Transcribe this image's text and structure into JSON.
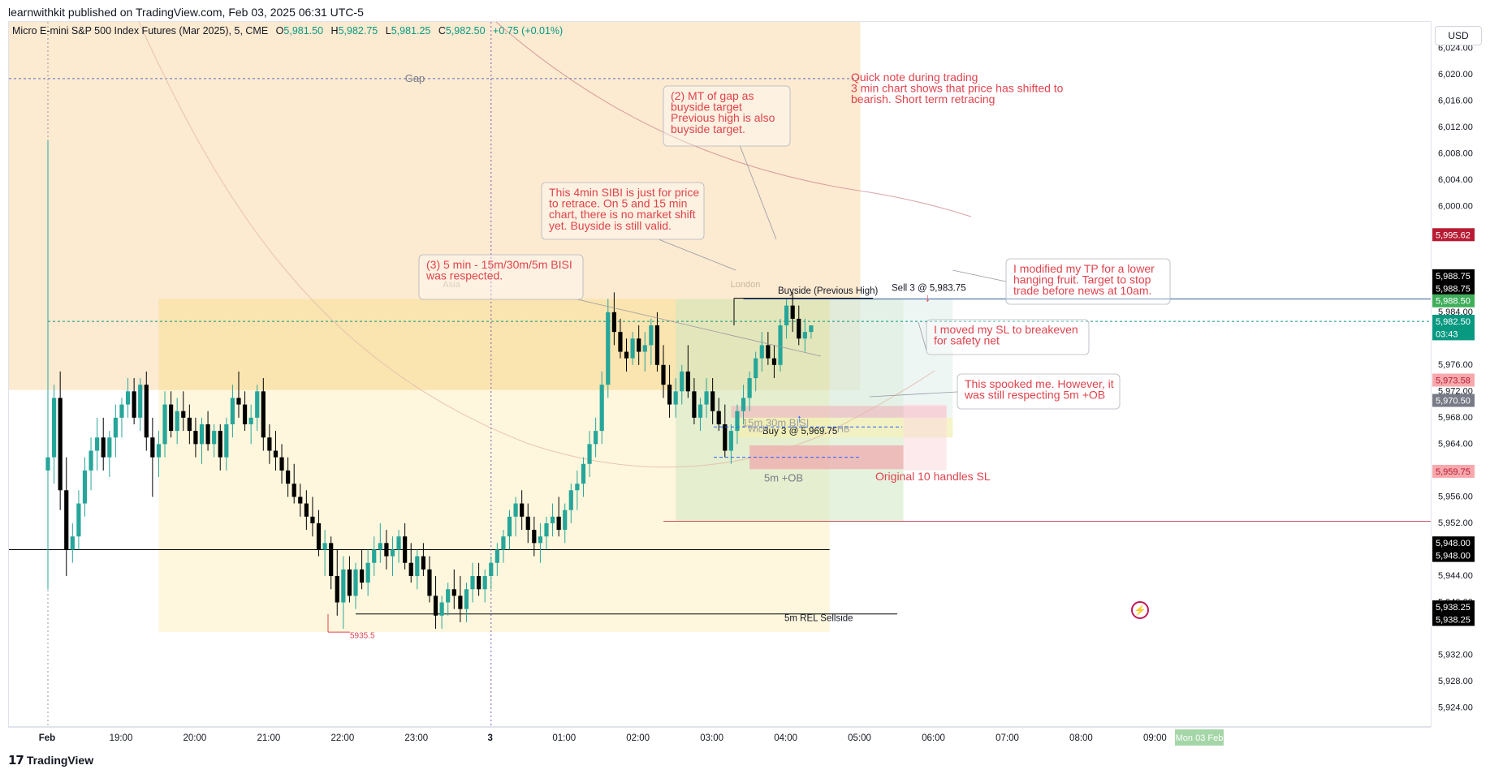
{
  "header": {
    "published": "learnwithkit published on TradingView.com, Feb 03, 2025 06:31 UTC-5",
    "symbol": "Micro E-mini S&P 500 Index Futures (Mar 2025), 5, CME",
    "open_label": "O",
    "open": "5,981.50",
    "high_label": "H",
    "high": "5,982.75",
    "low_label": "L",
    "low": "5,981.25",
    "close_label": "C",
    "close": "5,982.50",
    "change": "+0.75 (+0.01%)"
  },
  "currency": "USD",
  "footer": {
    "brand": "TradingView"
  },
  "colors": {
    "up": "#26a69a",
    "down": "#000000",
    "accent_red": "#e0434d",
    "session_asia": "#fdf1dc",
    "session_london": "#fbe3c1"
  },
  "chart_data": {
    "type": "candlestick",
    "ylim": [
      5921,
      6028
    ],
    "y_ticks": [
      6024,
      6020,
      6016,
      6012,
      6008,
      6004,
      6000,
      5996,
      5992,
      5988,
      5984,
      5980,
      5976,
      5972,
      5968,
      5964,
      5960,
      5956,
      5952,
      5948,
      5944,
      5940,
      5936,
      5932,
      5928,
      5924
    ],
    "y_tick_labels": [
      "6,024.00",
      "6,020.00",
      "6,016.00",
      "6,012.00",
      "6,008.00",
      "6,004.00",
      "6,000.00",
      "",
      "",
      "",
      "5,984.00",
      "",
      "5,976.00",
      "5,972.00",
      "5,968.00",
      "5,964.00",
      "",
      "5,956.00",
      "5,952.00",
      "",
      "5,944.00",
      "5,940.00",
      "",
      "5,932.00",
      "5,928.00",
      "5,924.00"
    ],
    "x_ticks": [
      {
        "label": "Feb",
        "bar": 0,
        "bold": true
      },
      {
        "label": "19:00",
        "bar": 12
      },
      {
        "label": "20:00",
        "bar": 24
      },
      {
        "label": "21:00",
        "bar": 36
      },
      {
        "label": "22:00",
        "bar": 48
      },
      {
        "label": "23:00",
        "bar": 60
      },
      {
        "label": "3",
        "bar": 72,
        "bold": true
      },
      {
        "label": "01:00",
        "bar": 84
      },
      {
        "label": "02:00",
        "bar": 96
      },
      {
        "label": "03:00",
        "bar": 108
      },
      {
        "label": "04:00",
        "bar": 120
      },
      {
        "label": "05:00",
        "bar": 132
      },
      {
        "label": "06:00",
        "bar": 144
      },
      {
        "label": "07:00",
        "bar": 156
      },
      {
        "label": "08:00",
        "bar": 168
      },
      {
        "label": "09:00",
        "bar": 180
      }
    ],
    "x_badge": "Mon 03 Feb",
    "price_labels": [
      {
        "value": "5,995.62",
        "price": 5995.62,
        "bg": "#b71c34",
        "fg": "#ffffff"
      },
      {
        "value": "5,988.75",
        "price": 5989.4,
        "bg": "#000000",
        "fg": "#ffffff"
      },
      {
        "value": "5,988.75",
        "price": 5987.5,
        "bg": "#000000",
        "fg": "#ffffff"
      },
      {
        "value": "5,988.50",
        "price": 5985.6,
        "bg": "#3fae5a",
        "fg": "#ffffff"
      },
      {
        "value": "5,982.50",
        "price": 5982.5,
        "bg": "#089981",
        "fg": "#ffffff"
      },
      {
        "value": "03:43",
        "price": 5980.6,
        "bg": "#089981",
        "fg": "#ffffff"
      },
      {
        "value": "5,973.58",
        "price": 5973.58,
        "bg": "#f7a8ac",
        "fg": "#b71c34"
      },
      {
        "value": "5,970.50",
        "price": 5970.5,
        "bg": "#787b86",
        "fg": "#ffffff"
      },
      {
        "value": "5,959.75",
        "price": 5959.75,
        "bg": "#f7a8ac",
        "fg": "#b71c34"
      },
      {
        "value": "5,948.00",
        "price": 5948.9,
        "bg": "#000000",
        "fg": "#ffffff"
      },
      {
        "value": "5,948.00",
        "price": 5947.0,
        "bg": "#000000",
        "fg": "#ffffff"
      },
      {
        "value": "5,938.25",
        "price": 5939.2,
        "bg": "#000000",
        "fg": "#ffffff"
      },
      {
        "value": "5,938.25",
        "price": 5937.3,
        "bg": "#000000",
        "fg": "#ffffff"
      }
    ],
    "candles": [
      [
        5960,
        6010,
        5942,
        5962
      ],
      [
        5962,
        5973,
        5958,
        5971
      ],
      [
        5971,
        5975,
        5954,
        5957
      ],
      [
        5957,
        5962,
        5944,
        5948
      ],
      [
        5948,
        5952,
        5946,
        5950
      ],
      [
        5950,
        5957,
        5948,
        5955
      ],
      [
        5955,
        5962,
        5953,
        5960
      ],
      [
        5960,
        5965,
        5957,
        5963
      ],
      [
        5963,
        5968,
        5960,
        5965
      ],
      [
        5965,
        5968,
        5960,
        5962
      ],
      [
        5962,
        5966,
        5959,
        5965
      ],
      [
        5965,
        5970,
        5962,
        5968
      ],
      [
        5968,
        5971,
        5965,
        5970
      ],
      [
        5970,
        5974,
        5968,
        5972
      ],
      [
        5972,
        5974,
        5967,
        5968
      ],
      [
        5968,
        5974,
        5966,
        5973
      ],
      [
        5973,
        5975,
        5963,
        5965
      ],
      [
        5965,
        5968,
        5956,
        5962
      ],
      [
        5962,
        5966,
        5959,
        5964
      ],
      [
        5964,
        5972,
        5962,
        5970
      ],
      [
        5970,
        5972,
        5965,
        5966
      ],
      [
        5966,
        5971,
        5964,
        5969
      ],
      [
        5969,
        5972,
        5966,
        5968
      ],
      [
        5968,
        5970,
        5964,
        5966
      ],
      [
        5966,
        5968,
        5962,
        5964
      ],
      [
        5964,
        5968,
        5961,
        5967
      ],
      [
        5967,
        5969,
        5963,
        5964
      ],
      [
        5964,
        5967,
        5962,
        5966
      ],
      [
        5966,
        5967,
        5960,
        5962
      ],
      [
        5962,
        5968,
        5960,
        5967
      ],
      [
        5967,
        5973,
        5965,
        5971
      ],
      [
        5971,
        5975,
        5968,
        5970
      ],
      [
        5970,
        5972,
        5966,
        5967
      ],
      [
        5967,
        5970,
        5964,
        5968
      ],
      [
        5968,
        5973,
        5966,
        5972
      ],
      [
        5972,
        5974,
        5963,
        5965
      ],
      [
        5965,
        5967,
        5961,
        5963
      ],
      [
        5963,
        5966,
        5960,
        5962
      ],
      [
        5962,
        5964,
        5958,
        5960
      ],
      [
        5960,
        5962,
        5956,
        5958
      ],
      [
        5958,
        5961,
        5955,
        5956
      ],
      [
        5956,
        5958,
        5953,
        5955
      ],
      [
        5955,
        5957,
        5951,
        5953
      ],
      [
        5953,
        5956,
        5950,
        5952
      ],
      [
        5952,
        5954,
        5947,
        5948
      ],
      [
        5948,
        5951,
        5944,
        5949
      ],
      [
        5949,
        5950,
        5942,
        5944
      ],
      [
        5944,
        5948,
        5938,
        5940
      ],
      [
        5940,
        5947,
        5936,
        5945
      ],
      [
        5945,
        5947,
        5940,
        5941
      ],
      [
        5941,
        5946,
        5939,
        5945
      ],
      [
        5945,
        5948,
        5942,
        5943
      ],
      [
        5943,
        5948,
        5941,
        5946
      ],
      [
        5946,
        5950,
        5944,
        5948
      ],
      [
        5948,
        5952,
        5946,
        5949
      ],
      [
        5949,
        5951,
        5945,
        5947
      ],
      [
        5947,
        5950,
        5944,
        5948
      ],
      [
        5948,
        5951,
        5946,
        5950
      ],
      [
        5950,
        5952,
        5945,
        5946
      ],
      [
        5946,
        5949,
        5943,
        5944
      ],
      [
        5944,
        5948,
        5942,
        5947
      ],
      [
        5947,
        5949,
        5944,
        5945
      ],
      [
        5945,
        5947,
        5940,
        5941
      ],
      [
        5941,
        5944,
        5936,
        5938
      ],
      [
        5938,
        5941,
        5936,
        5940
      ],
      [
        5940,
        5943,
        5938,
        5942
      ],
      [
        5942,
        5945,
        5939,
        5941
      ],
      [
        5941,
        5944,
        5937,
        5939
      ],
      [
        5939,
        5943,
        5937,
        5942
      ],
      [
        5942,
        5946,
        5940,
        5944
      ],
      [
        5944,
        5946,
        5941,
        5942
      ],
      [
        5942,
        5945,
        5940,
        5944
      ],
      [
        5944,
        5947,
        5942,
        5946
      ],
      [
        5946,
        5949,
        5944,
        5948
      ],
      [
        5948,
        5951,
        5946,
        5950
      ],
      [
        5950,
        5954,
        5948,
        5953
      ],
      [
        5953,
        5956,
        5950,
        5955
      ],
      [
        5955,
        5957,
        5951,
        5953
      ],
      [
        5953,
        5955,
        5949,
        5951
      ],
      [
        5951,
        5953,
        5947,
        5949
      ],
      [
        5949,
        5952,
        5946,
        5950
      ],
      [
        5950,
        5953,
        5948,
        5952
      ],
      [
        5952,
        5955,
        5950,
        5953
      ],
      [
        5953,
        5956,
        5950,
        5951
      ],
      [
        5951,
        5955,
        5949,
        5954
      ],
      [
        5954,
        5958,
        5952,
        5957
      ],
      [
        5957,
        5960,
        5954,
        5958
      ],
      [
        5958,
        5962,
        5956,
        5961
      ],
      [
        5961,
        5966,
        5959,
        5964
      ],
      [
        5964,
        5968,
        5962,
        5966
      ],
      [
        5966,
        5975,
        5964,
        5973
      ],
      [
        5973,
        5986,
        5971,
        5984
      ],
      [
        5984,
        5987,
        5979,
        5981
      ],
      [
        5981,
        5983,
        5977,
        5978
      ],
      [
        5978,
        5980,
        5975,
        5977
      ],
      [
        5977,
        5981,
        5976,
        5980
      ],
      [
        5980,
        5982,
        5976,
        5978
      ],
      [
        5978,
        5981,
        5975,
        5979
      ],
      [
        5979,
        5983,
        5976,
        5982
      ],
      [
        5982,
        5984,
        5975,
        5976
      ],
      [
        5976,
        5979,
        5971,
        5973
      ],
      [
        5973,
        5976,
        5968,
        5970
      ],
      [
        5970,
        5974,
        5968,
        5972
      ],
      [
        5972,
        5976,
        5970,
        5975
      ],
      [
        5975,
        5979,
        5971,
        5972
      ],
      [
        5972,
        5974,
        5967,
        5968
      ],
      [
        5968,
        5971,
        5966,
        5970
      ],
      [
        5970,
        5974,
        5968,
        5972
      ],
      [
        5972,
        5974,
        5967,
        5969
      ],
      [
        5969,
        5971,
        5966,
        5967
      ],
      [
        5967,
        5970,
        5962,
        5963
      ],
      [
        5963,
        5967,
        5961,
        5966
      ],
      [
        5966,
        5970,
        5964,
        5969
      ],
      [
        5969,
        5973,
        5967,
        5971
      ],
      [
        5971,
        5975,
        5969,
        5974
      ],
      [
        5974,
        5978,
        5972,
        5977
      ],
      [
        5977,
        5981,
        5975,
        5979
      ],
      [
        5979,
        5981,
        5976,
        5977
      ],
      [
        5977,
        5979,
        5974,
        5976
      ],
      [
        5976,
        5983,
        5975,
        5982
      ],
      [
        5982,
        5986,
        5980,
        5985
      ],
      [
        5985,
        5987,
        5981,
        5983
      ],
      [
        5983,
        5985,
        5979,
        5980
      ],
      [
        5980,
        5983,
        5978,
        5981
      ],
      [
        5981,
        5982,
        5980,
        5982
      ]
    ],
    "price_lines": [
      {
        "price": 5986.0,
        "x1bar": 113,
        "x2bar": 999,
        "color": "#2f5ea0",
        "width": 1,
        "dash": false
      },
      {
        "price": 5982.6,
        "x1bar": 0,
        "x2bar": 999,
        "color": "#089981",
        "width": 1,
        "dash": true
      },
      {
        "price": 5952.3,
        "x1bar": 100,
        "x2bar": 999,
        "color": "#b71c34",
        "width": 0.8,
        "dash": false
      },
      {
        "price": 5948.0,
        "x1bar": -1,
        "x2bar": 127,
        "color": "#000000",
        "width": 1,
        "dash": false
      },
      {
        "price": 5938.25,
        "x1bar": 50,
        "x2bar": 138,
        "color": "#000000",
        "width": 1,
        "dash": false
      },
      {
        "price": 6019.4,
        "x1bar": -1,
        "x2bar": 132,
        "color": "#5b72c4",
        "width": 1,
        "dash": true
      }
    ],
    "zones": [
      {
        "x1bar": -1,
        "x2bar": 132,
        "p1": 6028,
        "p2": 5972.2,
        "fill": "#fbe3c1",
        "opacity": 0.75
      },
      {
        "x1bar": 18,
        "x2bar": 127,
        "p1": 5986.0,
        "p2": 5935.5,
        "fill": "#fdf3cf",
        "opacity": 0.7
      },
      {
        "x1bar": 18,
        "x2bar": 132,
        "p1": 5986.0,
        "p2": 5972.2,
        "fill": "#f6d48a",
        "opacity": 0.45
      },
      {
        "x1bar": 102,
        "x2bar": 139,
        "p1": 5986.0,
        "p2": 5952.3,
        "fill": "#cfe8c3",
        "opacity": 0.55
      },
      {
        "x1bar": 127,
        "x2bar": 147,
        "p1": 5986.0,
        "p2": 5965,
        "fill": "#e3f0ec",
        "opacity": 0.6
      },
      {
        "x1bar": 111,
        "x2bar": 146,
        "p1": 5969.8,
        "p2": 5968.0,
        "fill": "#f2b3bb",
        "opacity": 0.6
      },
      {
        "x1bar": 112,
        "x2bar": 147,
        "p1": 5968.0,
        "p2": 5965.0,
        "fill": "#fbf1a6",
        "opacity": 0.55
      },
      {
        "x1bar": 114,
        "x2bar": 139,
        "p1": 5963.8,
        "p2": 5960.2,
        "fill": "#f1a0a8",
        "opacity": 0.65
      },
      {
        "x1bar": 139,
        "x2bar": 146,
        "p1": 5970.0,
        "p2": 5960.0,
        "fill": "#fbd9dc",
        "opacity": 0.55
      }
    ],
    "annotations": {
      "gap": "Gap",
      "asia": "Asia",
      "london": "London",
      "buyside": "Buyside (Previous High)",
      "sell": "Sell 3 @ 5,983.75",
      "buy": "Buy 3 @ 5,969.75",
      "bisi": "15m 30m BISI",
      "wick": "Wick",
      "hb": "HB",
      "ob": "5m +OB",
      "rel_sellside": "5m REL Sellside",
      "low_mark": "5935.5",
      "sl_note": "Original 10 handles SL",
      "note_quick": [
        "Quick note during trading",
        "3 min chart shows that price has shifted to",
        "bearish. Short term retracing"
      ],
      "note_mt": [
        "(2) MT of gap as",
        "buyside target",
        "Previous high is also",
        "buyside target."
      ],
      "note_sibi": [
        "This 4min SIBI is just for price",
        "to retrace. On 5 and 15 min",
        "chart, there is no market shift",
        "yet. Buyside is still valid."
      ],
      "note_bisi": [
        "(3) 5 min - 15m/30m/5m BISI",
        "was respected."
      ],
      "note_tp": [
        "I modified my TP for a lower",
        "hanging fruit. Target to stop",
        "trade before news at 10am."
      ],
      "note_sl": [
        "I moved my SL to breakeven",
        "for safety net"
      ],
      "note_spooked": [
        "This spooked me. However, it",
        "was still respecting 5m +OB"
      ]
    }
  }
}
